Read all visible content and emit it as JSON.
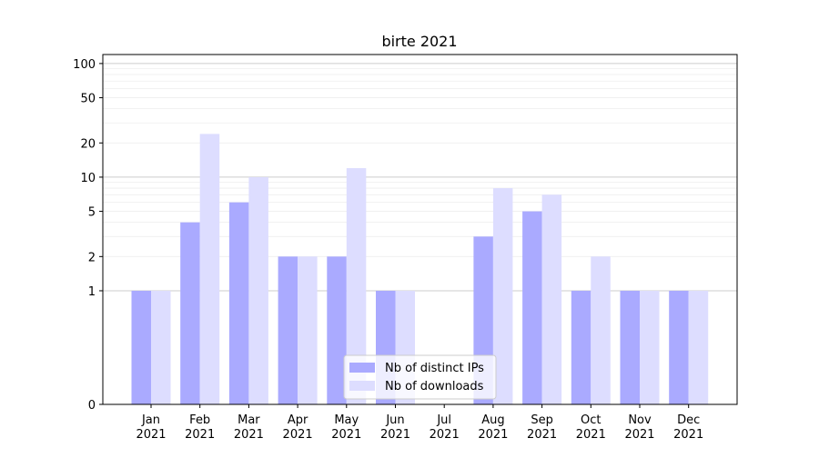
{
  "chart_data": {
    "type": "bar",
    "title": "birte 2021",
    "xlabel": "",
    "ylabel": "",
    "yscale": "symlog",
    "ylim": [
      0,
      120
    ],
    "yticks": [
      0,
      1,
      2,
      5,
      10,
      20,
      50,
      100
    ],
    "grid": true,
    "legend_position": "lower center",
    "categories": [
      [
        "Jan",
        "2021"
      ],
      [
        "Feb",
        "2021"
      ],
      [
        "Mar",
        "2021"
      ],
      [
        "Apr",
        "2021"
      ],
      [
        "May",
        "2021"
      ],
      [
        "Jun",
        "2021"
      ],
      [
        "Jul",
        "2021"
      ],
      [
        "Aug",
        "2021"
      ],
      [
        "Sep",
        "2021"
      ],
      [
        "Oct",
        "2021"
      ],
      [
        "Nov",
        "2021"
      ],
      [
        "Dec",
        "2021"
      ]
    ],
    "series": [
      {
        "name": "Nb of distinct IPs",
        "color": "#aaaaff",
        "values": [
          1,
          4,
          6,
          2,
          2,
          1,
          0,
          3,
          5,
          1,
          1,
          1
        ]
      },
      {
        "name": "Nb of downloads",
        "color": "#ddddff",
        "values": [
          1,
          24,
          10,
          2,
          12,
          1,
          0,
          8,
          7,
          2,
          1,
          1
        ]
      }
    ]
  }
}
